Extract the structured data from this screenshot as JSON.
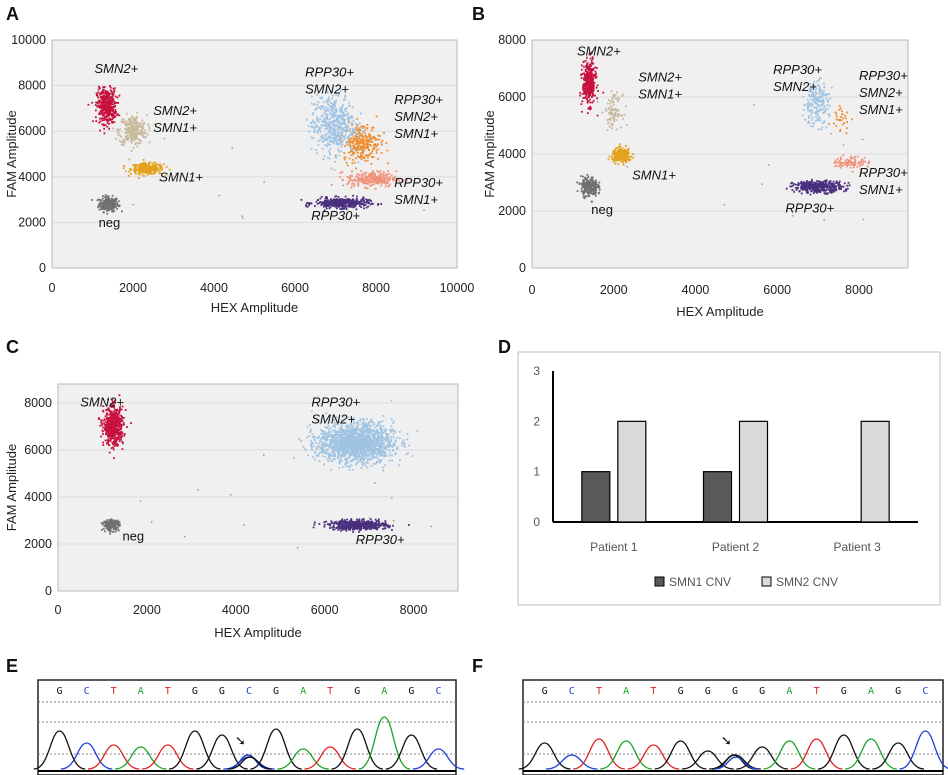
{
  "colors": {
    "neg": "#707070",
    "smn1": "#e3a21a",
    "smn2smn1": "#c8b89a",
    "smn2": "#c8103e",
    "rpp30": "#4b2f7f",
    "rpp30smn1": "#f2917a",
    "rpp30smn2smn1": "#ef8b2c",
    "rpp30smn2": "#9fc3e3",
    "bar_smn1": "#595959",
    "bar_smn2": "#d9d9d9",
    "trace_g": "#111111",
    "trace_c": "#1f3fd6",
    "trace_t": "#e02020",
    "trace_a": "#1aa52a"
  },
  "panels": {
    "A": "A",
    "B": "B",
    "C": "C",
    "D": "D",
    "E": "E",
    "F": "F"
  },
  "chart_data": [
    {
      "id": "A",
      "type": "scatter",
      "xlabel": "HEX Amplitude",
      "ylabel": "FAM Amplitude",
      "xlim": [
        0,
        10000
      ],
      "ylim": [
        0,
        10000
      ],
      "xticks": [
        "0",
        "2000",
        "4000",
        "6000",
        "8000",
        "10000"
      ],
      "yticks": [
        "0",
        "2000",
        "4000",
        "6000",
        "8000",
        "10000"
      ],
      "clusters": [
        {
          "name": "neg",
          "x": 1400,
          "y": 2800,
          "sx": 120,
          "sy": 160,
          "n": 220,
          "color": "neg"
        },
        {
          "name": "SMN1+",
          "x": 2350,
          "y": 4350,
          "sx": 200,
          "sy": 120,
          "n": 260,
          "color": "smn1"
        },
        {
          "name": "SMN2+ SMN1+",
          "x": 2000,
          "y": 6050,
          "sx": 170,
          "sy": 320,
          "n": 260,
          "color": "smn2smn1"
        },
        {
          "name": "SMN2+",
          "x": 1350,
          "y": 7100,
          "sx": 120,
          "sy": 380,
          "n": 380,
          "color": "smn2"
        },
        {
          "name": "RPP30+",
          "x": 7150,
          "y": 2850,
          "sx": 330,
          "sy": 110,
          "n": 380,
          "color": "rpp30"
        },
        {
          "name": "RPP30+ SMN1+",
          "x": 7900,
          "y": 3900,
          "sx": 300,
          "sy": 170,
          "n": 260,
          "color": "rpp30smn1"
        },
        {
          "name": "RPP30+ SMN2+ SMN1+",
          "x": 7650,
          "y": 5500,
          "sx": 230,
          "sy": 420,
          "n": 280,
          "color": "rpp30smn2smn1"
        },
        {
          "name": "RPP30+ SMN2+",
          "x": 6950,
          "y": 6300,
          "sx": 270,
          "sy": 650,
          "n": 480,
          "color": "rpp30smn2"
        }
      ],
      "labels": [
        {
          "lines": [
            "SMN2+"
          ],
          "x": 1050,
          "y": 8550,
          "italic": true
        },
        {
          "lines": [
            "SMN2+",
            "SMN1+"
          ],
          "x": 2500,
          "y": 6700,
          "italic": true
        },
        {
          "lines": [
            "SMN1+"
          ],
          "x": 2650,
          "y": 3800,
          "italic": true
        },
        {
          "lines": [
            "neg"
          ],
          "x": 1150,
          "y": 1800,
          "italic": false
        },
        {
          "lines": [
            "RPP30+",
            "SMN2+"
          ],
          "x": 6250,
          "y": 8400,
          "italic": true
        },
        {
          "lines": [
            "RPP30+",
            "SMN2+",
            "SMN1+"
          ],
          "x": 8450,
          "y": 7200,
          "italic": true
        },
        {
          "lines": [
            "RPP30+",
            "SMN1+"
          ],
          "x": 8450,
          "y": 3550,
          "italic": true
        },
        {
          "lines": [
            "RPP30+"
          ],
          "x": 6400,
          "y": 2100,
          "italic": true
        }
      ]
    },
    {
      "id": "B",
      "type": "scatter",
      "xlabel": "HEX Amplitude",
      "ylabel": "FAM Amplitude",
      "xlim": [
        0,
        9200
      ],
      "ylim": [
        0,
        8000
      ],
      "xticks": [
        "0",
        "2000",
        "4000",
        "6000",
        "8000"
      ],
      "yticks": [
        "0",
        "2000",
        "4000",
        "6000",
        "8000"
      ],
      "clusters": [
        {
          "name": "neg",
          "x": 1400,
          "y": 2850,
          "sx": 100,
          "sy": 170,
          "n": 240,
          "color": "neg"
        },
        {
          "name": "SMN1+",
          "x": 2200,
          "y": 3950,
          "sx": 120,
          "sy": 120,
          "n": 240,
          "color": "smn1"
        },
        {
          "name": "SMN2+ SMN1+",
          "x": 2000,
          "y": 5500,
          "sx": 100,
          "sy": 280,
          "n": 90,
          "color": "smn2smn1"
        },
        {
          "name": "SMN2+",
          "x": 1400,
          "y": 6500,
          "sx": 80,
          "sy": 380,
          "n": 360,
          "color": "smn2"
        },
        {
          "name": "RPP30+",
          "x": 7000,
          "y": 2850,
          "sx": 300,
          "sy": 100,
          "n": 380,
          "color": "rpp30"
        },
        {
          "name": "RPP30+ SMN1+",
          "x": 7800,
          "y": 3700,
          "sx": 220,
          "sy": 110,
          "n": 90,
          "color": "rpp30smn1"
        },
        {
          "name": "RPP30+ SMN2+ SMN1+",
          "x": 7550,
          "y": 5300,
          "sx": 120,
          "sy": 300,
          "n": 30,
          "color": "rpp30smn2smn1"
        },
        {
          "name": "RPP30+ SMN2+",
          "x": 6950,
          "y": 5800,
          "sx": 160,
          "sy": 400,
          "n": 200,
          "color": "rpp30smn2"
        }
      ],
      "labels": [
        {
          "lines": [
            "SMN2+"
          ],
          "x": 1100,
          "y": 7450,
          "italic": true
        },
        {
          "lines": [
            "SMN2+",
            "SMN1+"
          ],
          "x": 2600,
          "y": 6550,
          "italic": true
        },
        {
          "lines": [
            "SMN1+"
          ],
          "x": 2450,
          "y": 3100,
          "italic": true
        },
        {
          "lines": [
            "neg"
          ],
          "x": 1450,
          "y": 1900,
          "italic": false
        },
        {
          "lines": [
            "RPP30+",
            "SMN2+"
          ],
          "x": 5900,
          "y": 6800,
          "italic": true
        },
        {
          "lines": [
            "RPP30+",
            "SMN2+",
            "SMN1+"
          ],
          "x": 8000,
          "y": 6600,
          "italic": true
        },
        {
          "lines": [
            "RPP30+",
            "SMN1+"
          ],
          "x": 8000,
          "y": 3200,
          "italic": true
        },
        {
          "lines": [
            "RPP30+"
          ],
          "x": 6200,
          "y": 1950,
          "italic": true
        }
      ]
    },
    {
      "id": "C",
      "type": "scatter",
      "xlabel": "HEX Amplitude",
      "ylabel": "FAM Amplitude",
      "xlim": [
        0,
        9000
      ],
      "ylim": [
        0,
        8800
      ],
      "xticks": [
        "0",
        "2000",
        "4000",
        "6000",
        "8000"
      ],
      "yticks": [
        "0",
        "2000",
        "4000",
        "6000",
        "8000"
      ],
      "clusters": [
        {
          "name": "neg",
          "x": 1200,
          "y": 2800,
          "sx": 90,
          "sy": 110,
          "n": 200,
          "color": "neg"
        },
        {
          "name": "SMN2+",
          "x": 1250,
          "y": 7000,
          "sx": 110,
          "sy": 400,
          "n": 520,
          "color": "smn2"
        },
        {
          "name": "RPP30+",
          "x": 6750,
          "y": 2800,
          "sx": 320,
          "sy": 100,
          "n": 520,
          "color": "rpp30"
        },
        {
          "name": "RPP30+ SMN2+",
          "x": 6700,
          "y": 6300,
          "sx": 420,
          "sy": 420,
          "n": 1600,
          "color": "rpp30smn2"
        }
      ],
      "labels": [
        {
          "lines": [
            "SMN2+"
          ],
          "x": 500,
          "y": 7850,
          "italic": true
        },
        {
          "lines": [
            "neg"
          ],
          "x": 1450,
          "y": 2150,
          "italic": false
        },
        {
          "lines": [
            "RPP30+",
            "SMN2+"
          ],
          "x": 5700,
          "y": 7850,
          "italic": true
        },
        {
          "lines": [
            "RPP30+"
          ],
          "x": 6700,
          "y": 2000,
          "italic": true
        }
      ]
    },
    {
      "id": "D",
      "type": "bar",
      "categories": [
        "Patient 1",
        "Patient 2",
        "Patient 3"
      ],
      "series": [
        {
          "name": "SMN1 CNV",
          "values": [
            1,
            1,
            0
          ],
          "color": "bar_smn1"
        },
        {
          "name": "SMN2 CNV",
          "values": [
            2,
            2,
            2
          ],
          "color": "bar_smn2"
        }
      ],
      "ylim": [
        0,
        3
      ],
      "yticks": [
        "0",
        "1",
        "2",
        "3"
      ],
      "legend": "bottom"
    }
  ],
  "sequences": {
    "E": [
      "G",
      "C",
      "T",
      "A",
      "T",
      "G",
      "G",
      "C",
      "G",
      "A",
      "T",
      "G",
      "A",
      "G",
      "C"
    ],
    "F": [
      "G",
      "C",
      "T",
      "A",
      "T",
      "G",
      "G",
      "G",
      "G",
      "A",
      "T",
      "G",
      "A",
      "G",
      "C"
    ]
  },
  "arrow_symbol": "➘"
}
